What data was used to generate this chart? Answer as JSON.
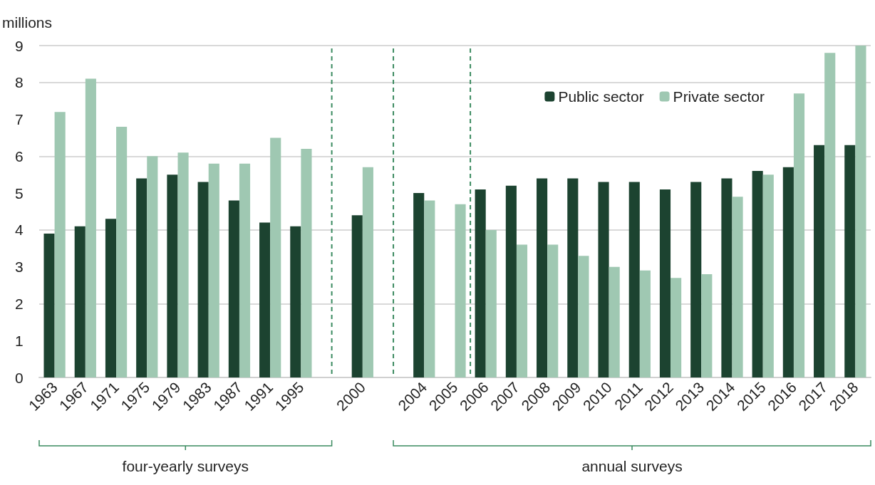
{
  "chart_data": {
    "type": "bar",
    "ylabel": "millions",
    "categories": [
      "1963",
      "1967",
      "1971",
      "1975",
      "1979",
      "1983",
      "1987",
      "1991",
      "1995",
      null,
      "2000",
      null,
      "2004",
      "2005",
      "2006",
      "2007",
      "2008",
      "2009",
      "2010",
      "2011",
      "2012",
      "2013",
      "2014",
      "2015",
      "2016",
      "2017",
      "2018"
    ],
    "series": [
      {
        "name": "Public sector",
        "color": "#1c4330",
        "values": [
          3.9,
          4.1,
          4.3,
          5.4,
          5.5,
          5.3,
          4.8,
          4.2,
          4.1,
          null,
          4.4,
          null,
          5.0,
          null,
          5.1,
          5.2,
          5.4,
          5.4,
          5.3,
          5.3,
          5.1,
          5.3,
          5.4,
          5.6,
          5.7,
          6.3,
          6.3
        ]
      },
      {
        "name": "Private sector",
        "color": "#9fc8b2",
        "values": [
          7.2,
          8.1,
          6.8,
          6.0,
          6.1,
          5.8,
          5.8,
          6.5,
          6.2,
          null,
          5.7,
          null,
          4.8,
          4.7,
          4.0,
          3.6,
          3.6,
          3.3,
          3.0,
          2.9,
          2.7,
          2.8,
          4.9,
          5.5,
          7.7,
          8.8,
          9.0
        ]
      }
    ],
    "ylim": [
      0,
      9
    ],
    "yticks": [
      0,
      1,
      2,
      3,
      4,
      5,
      6,
      7,
      8,
      9
    ],
    "grid": "y",
    "legend": "top right",
    "annotations": [
      "four-yearly surveys",
      "annual surveys"
    ]
  }
}
